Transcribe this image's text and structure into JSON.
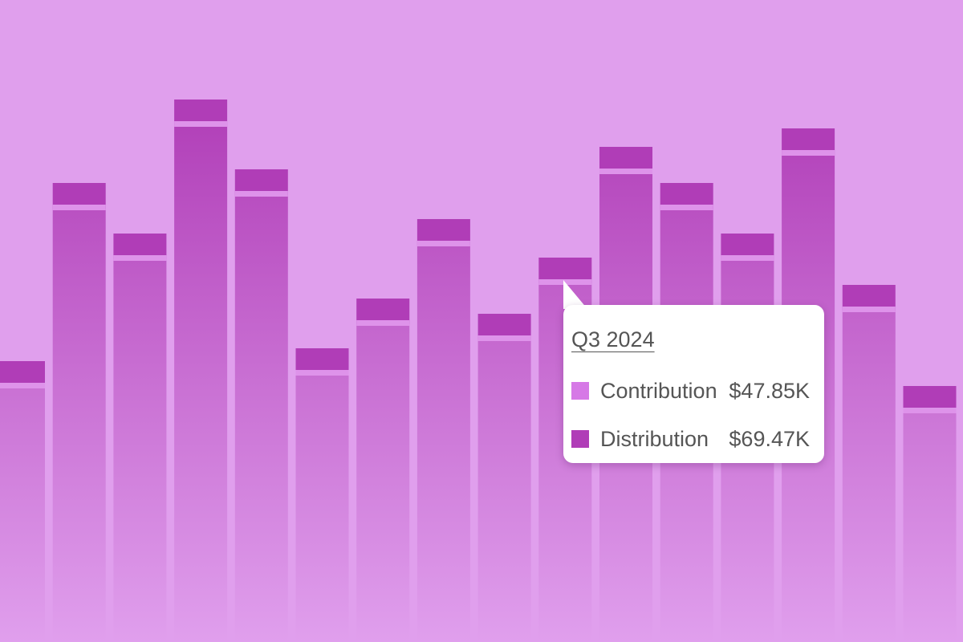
{
  "colors": {
    "background": "#e09fed",
    "contribution": "#d679e6",
    "distribution": "#b03db7",
    "bar_top": "#b03db7",
    "bar_bottom": "#e09fed",
    "separator": "#de93ea"
  },
  "tooltip": {
    "title": "Q3 2024",
    "rows": [
      {
        "label": "Contribution",
        "value": "$47.85K"
      },
      {
        "label": "Distribution",
        "value": "$69.47K"
      }
    ]
  },
  "chart_data": {
    "type": "bar",
    "stacked": true,
    "grid": false,
    "legend": "none",
    "ylim": [
      0,
      676
    ],
    "series": [
      {
        "key": "contribution",
        "values": [
          318,
          540,
          477,
          644,
          557,
          334,
          396,
          495,
          377,
          447,
          585,
          540,
          477,
          608,
          413,
          287
        ]
      },
      {
        "key": "distribution",
        "values": [
          32,
          32,
          32,
          32,
          32,
          32,
          32,
          32,
          32,
          32,
          32,
          32,
          32,
          32,
          32,
          32
        ]
      }
    ]
  }
}
